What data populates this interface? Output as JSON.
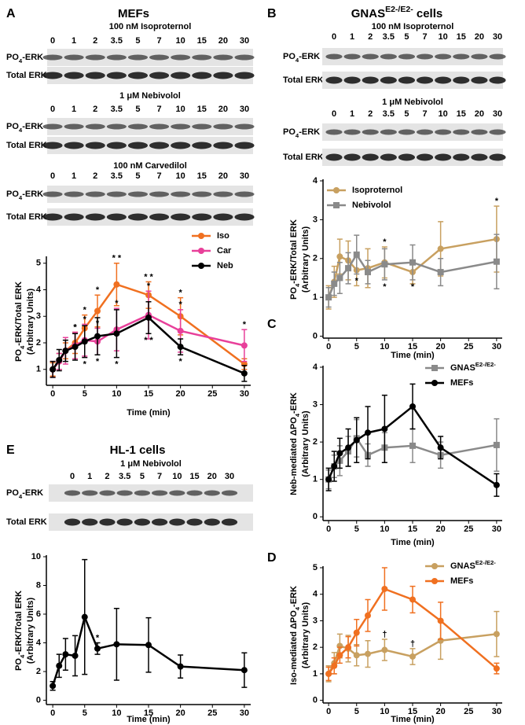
{
  "panels": [
    {
      "label": "A",
      "title": [
        {
          "t": "MEFs"
        }
      ],
      "blots": [
        {
          "treatment": "100 nM Isoproternol",
          "times": [
            "0",
            "1",
            "2",
            "3.5",
            "5",
            "7",
            "10",
            "15",
            "20",
            "30"
          ],
          "rows": [
            [
              {
                "t": "PO"
              },
              {
                "sub": "4"
              },
              {
                "t": "-ERK"
              }
            ],
            [
              {
                "t": "Total ERK"
              }
            ]
          ]
        },
        {
          "treatment": "1 μM Nebivolol",
          "times": [
            "0",
            "1",
            "2",
            "3.5",
            "5",
            "7",
            "10",
            "15",
            "20",
            "30"
          ],
          "rows": [
            [
              {
                "t": "PO"
              },
              {
                "sub": "4"
              },
              {
                "t": "-ERK"
              }
            ],
            [
              {
                "t": "Total ERK"
              }
            ]
          ]
        },
        {
          "treatment": "100 nM Carvedilol",
          "times": [
            "0",
            "1",
            "2",
            "3.5",
            "5",
            "7",
            "10",
            "15",
            "20",
            "30"
          ],
          "rows": [
            [
              {
                "t": "PO"
              },
              {
                "sub": "4"
              },
              {
                "t": "-ERK"
              }
            ],
            [
              {
                "t": "Total ERK"
              }
            ]
          ]
        }
      ]
    },
    {
      "label": "B",
      "title": [
        {
          "t": "GNAS"
        },
        {
          "sup": "E2-/E2-"
        },
        {
          "t": " cells"
        }
      ],
      "blots": [
        {
          "treatment": "100 nM Isoproternol",
          "times": [
            "0",
            "1",
            "2",
            "3.5",
            "5",
            "7",
            "10",
            "15",
            "20",
            "30"
          ],
          "rows": [
            [
              {
                "t": "PO"
              },
              {
                "sub": "4"
              },
              {
                "t": "-ERK"
              }
            ],
            [
              {
                "t": "Total ERK"
              }
            ]
          ]
        },
        {
          "treatment": "1 μM Nebivolol",
          "times": [
            "0",
            "1",
            "2",
            "3.5",
            "5",
            "7",
            "10",
            "15",
            "20",
            "30"
          ],
          "rows": [
            [
              {
                "t": "PO"
              },
              {
                "sub": "4"
              },
              {
                "t": "-ERK"
              }
            ],
            [
              {
                "t": "Total ERK"
              }
            ]
          ]
        }
      ]
    },
    {
      "label": "C"
    },
    {
      "label": "D"
    },
    {
      "label": "E",
      "title": [
        {
          "t": "HL-1 cells"
        }
      ],
      "blots": [
        {
          "treatment": "1 μM Nebivolol",
          "times": [
            "0",
            "1",
            "2",
            "3.5",
            "5",
            "7",
            "10",
            "15",
            "20",
            "30"
          ],
          "rows": [
            [
              {
                "t": "PO"
              },
              {
                "sub": "4"
              },
              {
                "t": "-ERK"
              }
            ],
            [
              {
                "t": "Total ERK"
              }
            ]
          ]
        }
      ]
    }
  ],
  "chart_data": [
    {
      "type": "line",
      "x_label": "Time (min)",
      "y_label": [
        {
          "t": "PO"
        },
        {
          "sub": "4"
        },
        {
          "t": "-ERK/Total ERK"
        }
      ],
      "y_label_2": "(Arbitrary Units)",
      "x": [
        0,
        1,
        2,
        3.5,
        5,
        7,
        10,
        15,
        20,
        30
      ],
      "xlim": [
        -1,
        31
      ],
      "xticks": [
        0,
        5,
        10,
        15,
        20,
        25,
        30
      ],
      "ylim": [
        0.4,
        5.2
      ],
      "yticks": [
        1,
        2,
        3,
        4,
        5
      ],
      "series": [
        {
          "name": "Iso",
          "color": "#f07020",
          "marker": "circle",
          "values": [
            1,
            1.3,
            1.7,
            2.0,
            2.55,
            3.2,
            4.2,
            3.8,
            3.0,
            1.2
          ],
          "errors": [
            0.25,
            0.3,
            0.3,
            0.4,
            0.5,
            0.6,
            0.8,
            0.5,
            0.7,
            0.2
          ],
          "stars": [
            null,
            null,
            null,
            "*",
            "*",
            "*",
            "* *",
            "* *",
            "*",
            null
          ],
          "stars_side": "above"
        },
        {
          "name": "Car",
          "color": "#e8409a",
          "marker": "circle",
          "values": [
            1,
            1.3,
            1.7,
            1.9,
            2.1,
            2.05,
            2.5,
            3.05,
            2.45,
            1.9
          ],
          "errors": [
            0.3,
            0.3,
            0.5,
            0.5,
            0.6,
            0.5,
            0.8,
            0.9,
            0.8,
            0.6
          ],
          "stars": [
            null,
            null,
            null,
            "*",
            "*",
            "*",
            "*",
            "*",
            "*",
            "*"
          ],
          "stars_side": "above"
        },
        {
          "name": "Neb",
          "color": "#000000",
          "marker": "circle",
          "values": [
            1,
            1.35,
            1.7,
            1.85,
            2.05,
            2.25,
            2.35,
            2.95,
            1.85,
            0.85
          ],
          "errors": [
            0.3,
            0.4,
            0.4,
            0.5,
            0.6,
            0.7,
            0.9,
            0.6,
            0.3,
            0.3
          ],
          "stars": [
            null,
            null,
            null,
            null,
            "*",
            "*",
            "*",
            "* *",
            "*",
            null
          ],
          "stars_side": "below"
        }
      ]
    },
    {
      "type": "line",
      "x_label": "Time (min)",
      "y_label": [
        {
          "t": "PO"
        },
        {
          "sub": "4"
        },
        {
          "t": "-ERK/Total ERK"
        }
      ],
      "y_label_2": "(Arbitrary Units)",
      "x": [
        0,
        1,
        2,
        3.5,
        5,
        7,
        10,
        15,
        20,
        30
      ],
      "xlim": [
        -1,
        31
      ],
      "xticks": [
        0,
        5,
        10,
        15,
        20,
        25,
        30
      ],
      "ylim": [
        -0.05,
        4
      ],
      "yticks": [
        0,
        1,
        2,
        3,
        4
      ],
      "series": [
        {
          "name": "Isoproternol",
          "color": "#c8a060",
          "marker": "circle",
          "values": [
            1,
            1.4,
            2.05,
            1.95,
            1.7,
            1.75,
            1.9,
            1.65,
            2.25,
            2.5
          ],
          "errors": [
            0.3,
            0.4,
            0.45,
            0.5,
            0.4,
            0.5,
            0.4,
            0.3,
            0.7,
            0.85
          ],
          "stars": [
            null,
            null,
            null,
            null,
            null,
            null,
            "*",
            null,
            null,
            "*"
          ],
          "stars_side": "above"
        },
        {
          "name": "Nebivolol",
          "color": "#8a8a8a",
          "marker": "square",
          "values": [
            1,
            1.35,
            1.5,
            1.75,
            2.1,
            1.65,
            1.85,
            1.9,
            1.65,
            1.92
          ],
          "errors": [
            0.25,
            0.3,
            0.4,
            0.4,
            0.5,
            0.3,
            0.4,
            0.45,
            0.35,
            0.7
          ],
          "stars": [
            null,
            null,
            null,
            null,
            "*",
            null,
            "*",
            "*",
            null,
            null
          ],
          "stars_side": "below"
        }
      ]
    },
    {
      "type": "line",
      "x_label": "Time (min)",
      "y_label": [
        {
          "t": "Neb-mediated ΔPO"
        },
        {
          "sub": "4"
        },
        {
          "t": "-ERK"
        }
      ],
      "y_label_2": "(Arbitrary Units)",
      "x": [
        0,
        1,
        2,
        3.5,
        5,
        7,
        10,
        15,
        20,
        30
      ],
      "xlim": [
        -1,
        31
      ],
      "xticks": [
        0,
        5,
        10,
        15,
        20,
        25,
        30
      ],
      "ylim": [
        -0.1,
        4
      ],
      "yticks": [
        0,
        1,
        2,
        3,
        4
      ],
      "series": [
        {
          "name": "GNAS",
          "name_sup": "E2-/E2-",
          "color": "#8a8a8a",
          "marker": "square",
          "values": [
            1,
            1.35,
            1.5,
            1.75,
            2.1,
            1.65,
            1.85,
            1.9,
            1.65,
            1.92
          ],
          "errors": [
            0.25,
            0.3,
            0.4,
            0.4,
            0.5,
            0.3,
            0.4,
            0.45,
            0.35,
            0.7
          ]
        },
        {
          "name": "MEFs",
          "color": "#000000",
          "marker": "circle",
          "values": [
            1,
            1.35,
            1.7,
            1.85,
            2.05,
            2.25,
            2.35,
            2.95,
            1.85,
            0.85
          ],
          "errors": [
            0.3,
            0.4,
            0.4,
            0.5,
            0.6,
            0.7,
            0.9,
            0.6,
            0.3,
            0.3
          ]
        }
      ]
    },
    {
      "type": "line",
      "x_label": "Time (min)",
      "y_label": [
        {
          "t": "Iso-mediated ΔPO"
        },
        {
          "sub": "4"
        },
        {
          "t": "-ERK"
        }
      ],
      "y_label_2": "(Arbitrary Units)",
      "x": [
        0,
        1,
        2,
        3.5,
        5,
        7,
        10,
        15,
        20,
        30
      ],
      "xlim": [
        -1,
        31
      ],
      "xticks": [
        0,
        5,
        10,
        15,
        20,
        25,
        30
      ],
      "ylim": [
        -0.1,
        5
      ],
      "yticks": [
        0,
        1,
        2,
        3,
        4,
        5
      ],
      "series": [
        {
          "name": "GNAS",
          "name_sup": "E2-/E2-",
          "color": "#c8a060",
          "marker": "circle",
          "values": [
            1,
            1.4,
            2.05,
            1.95,
            1.7,
            1.75,
            1.9,
            1.65,
            2.25,
            2.5
          ],
          "errors": [
            0.3,
            0.4,
            0.45,
            0.5,
            0.4,
            0.5,
            0.4,
            0.3,
            0.7,
            0.85
          ],
          "stars": [
            null,
            null,
            null,
            null,
            null,
            null,
            "†",
            "†",
            null,
            null
          ],
          "stars_side": "above",
          "stars_color": "#000000"
        },
        {
          "name": "MEFs",
          "color": "#f07020",
          "marker": "circle",
          "values": [
            1,
            1.3,
            1.7,
            2.0,
            2.55,
            3.2,
            4.2,
            3.8,
            3.0,
            1.2
          ],
          "errors": [
            0.25,
            0.3,
            0.3,
            0.4,
            0.5,
            0.6,
            0.8,
            0.5,
            0.7,
            0.2
          ]
        }
      ]
    },
    {
      "type": "line",
      "x_label": "Time (min)",
      "y_label": [
        {
          "t": "PO"
        },
        {
          "sub": "4"
        },
        {
          "t": "-ERK/Total ERK"
        }
      ],
      "y_label_2": "(Arbitrary Units)",
      "x": [
        0,
        1,
        2,
        3.5,
        5,
        7,
        10,
        15,
        20,
        30
      ],
      "xlim": [
        -1,
        31
      ],
      "xticks": [
        0,
        5,
        10,
        15,
        20,
        25,
        30
      ],
      "ylim": [
        -0.3,
        10
      ],
      "yticks": [
        0,
        2,
        4,
        6,
        8,
        10
      ],
      "series": [
        {
          "color": "#000000",
          "marker": "circle",
          "values": [
            1,
            2.4,
            3.2,
            3.1,
            5.8,
            3.6,
            3.9,
            3.85,
            2.35,
            2.1
          ],
          "errors": [
            0.3,
            0.8,
            1.1,
            1.4,
            4.0,
            0.4,
            2.5,
            1.9,
            0.8,
            1.2
          ],
          "stars": [
            null,
            null,
            null,
            null,
            null,
            "*",
            null,
            null,
            null,
            null
          ],
          "stars_side": "above"
        }
      ]
    }
  ]
}
